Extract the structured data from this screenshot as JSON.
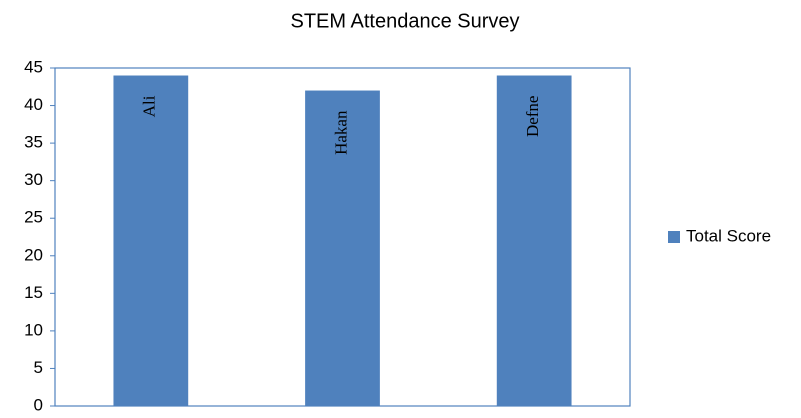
{
  "chart_data": {
    "type": "bar",
    "title": "STEM Attendance Survey",
    "categories": [
      "Ali",
      "Hakan",
      "Defne"
    ],
    "series": [
      {
        "name": "Total Score",
        "color": "#4f81bd",
        "values": [
          44,
          42,
          44
        ]
      }
    ],
    "ylim": [
      0,
      45
    ],
    "yticks": [
      0,
      5,
      10,
      15,
      20,
      25,
      30,
      35,
      40,
      45
    ],
    "grid": false,
    "legend": "right"
  }
}
